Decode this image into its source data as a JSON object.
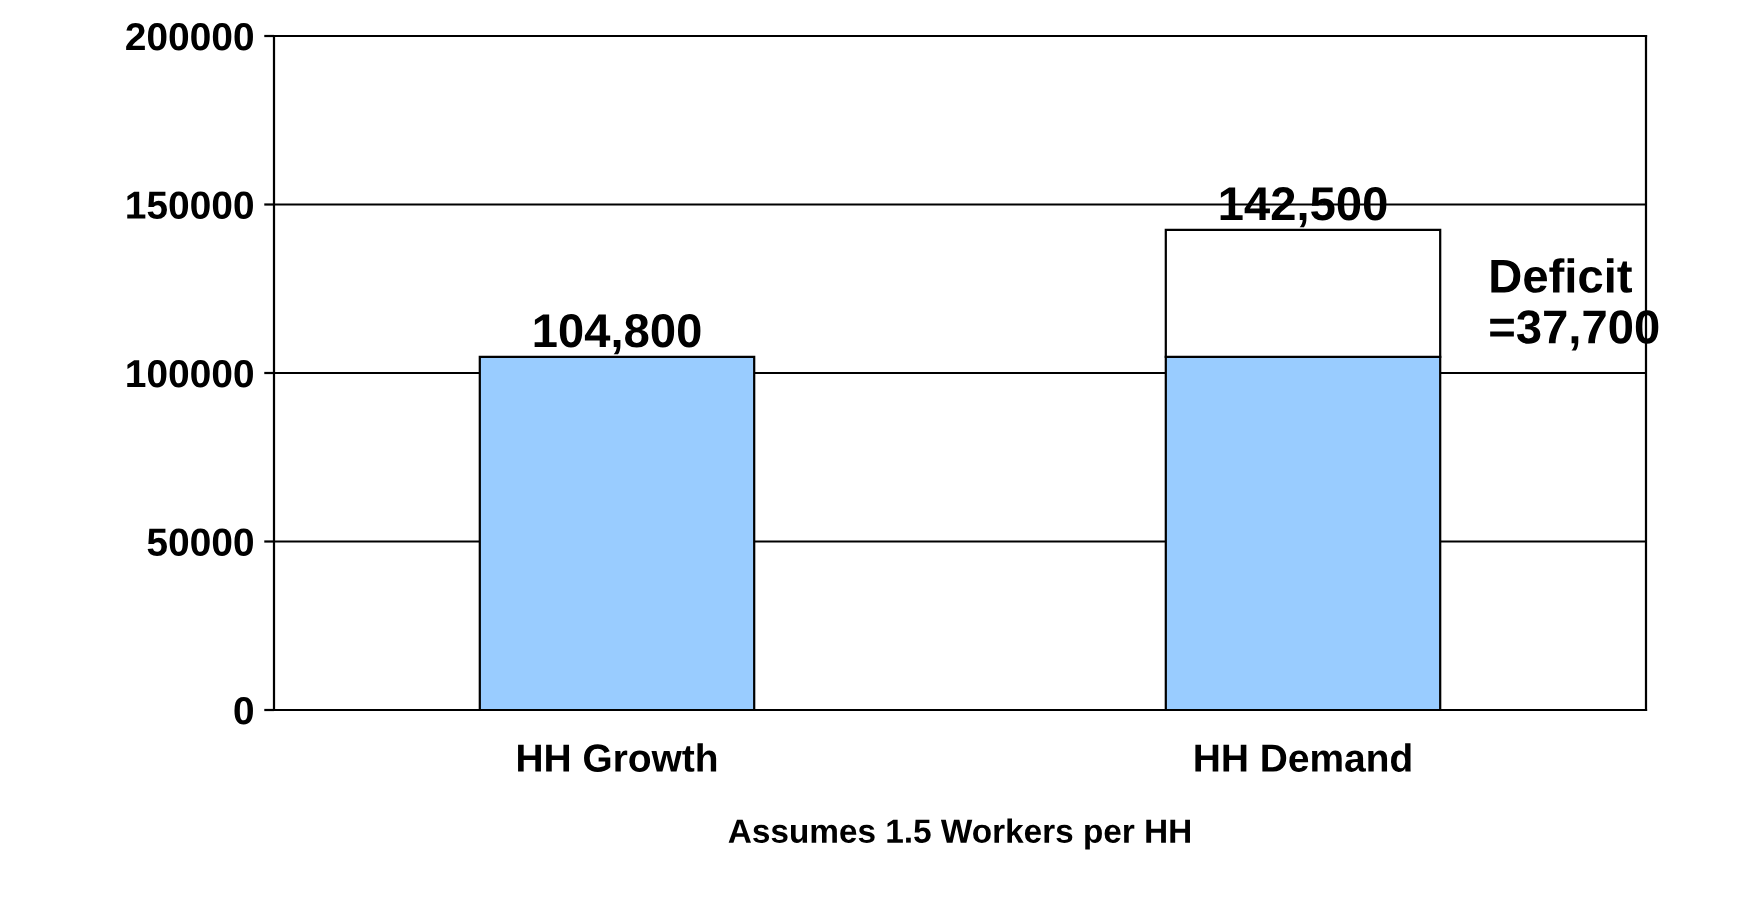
{
  "chart_data": {
    "type": "bar",
    "stacked": true,
    "xlabel": "Assumes 1.5 Workers per HH",
    "categories": [
      "HH Growth",
      "HH Demand"
    ],
    "series": [
      {
        "color": "#99ccff",
        "values": [
          104800,
          104800
        ]
      },
      {
        "color": "#ffffff",
        "values": [
          null,
          37700
        ]
      }
    ],
    "totals": [
      "104,800",
      "142,500"
    ],
    "annotations": [
      "Deficit\n=37,700"
    ],
    "ylim": [
      0,
      200000
    ],
    "yticks": [
      0,
      50000,
      100000,
      150000,
      200000
    ],
    "grid": "y",
    "legend": false
  }
}
